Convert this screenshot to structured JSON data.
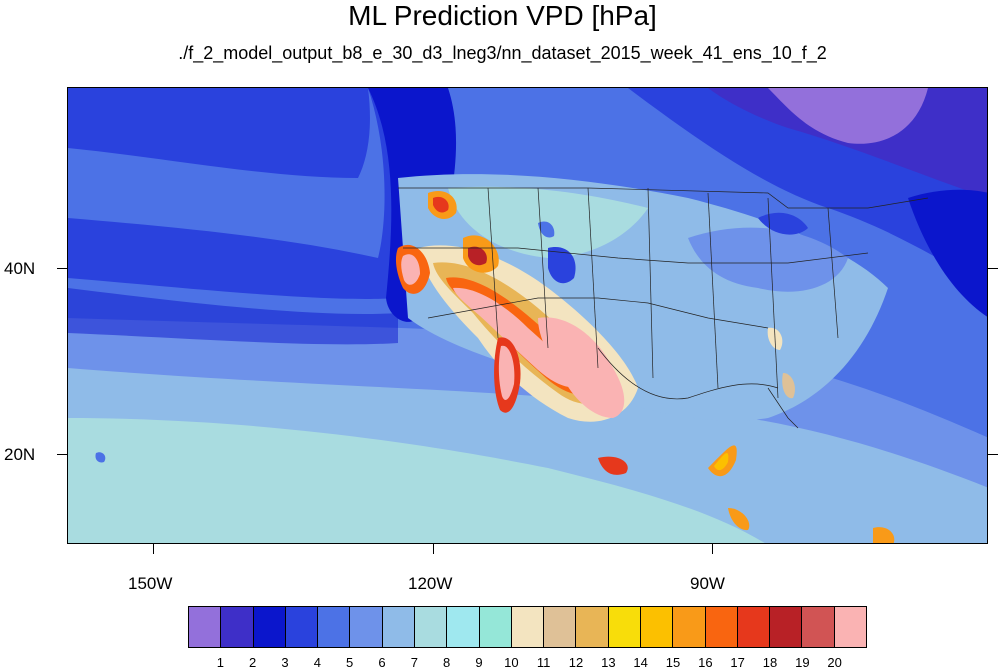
{
  "title": "ML Prediction VPD [hPa]",
  "subtitle": "./f_2_model_output_b8_e_30_d3_lneg3/nn_dataset_2015_week_41_ens_10_f_2",
  "x_ticks": [
    "150W",
    "120W",
    "90W"
  ],
  "y_ticks": [
    "40N",
    "20N"
  ],
  "colorbar": {
    "colors": [
      "#9370db",
      "#3e2fc8",
      "#0b16cc",
      "#2a42dd",
      "#4c72e6",
      "#6e92ea",
      "#8fbbe8",
      "#a9dce0",
      "#9fe8ef",
      "#95e7d8",
      "#f3e4c0",
      "#dfc197",
      "#e8b556",
      "#f8dd0a",
      "#fcc000",
      "#f99a18",
      "#f96510",
      "#e6381c",
      "#b82126",
      "#d15454",
      "#fab3b3"
    ],
    "labels": [
      "1",
      "2",
      "3",
      "4",
      "5",
      "6",
      "7",
      "8",
      "9",
      "10",
      "11",
      "12",
      "13",
      "14",
      "15",
      "16",
      "17",
      "18",
      "19",
      "20"
    ]
  },
  "colors": {
    "ocean_north": "#0b16cc",
    "ocean_mid": "#4c72e6",
    "tropics": "#a9dce0",
    "arid": "#fab3b3",
    "hot": "#e6381c"
  }
}
